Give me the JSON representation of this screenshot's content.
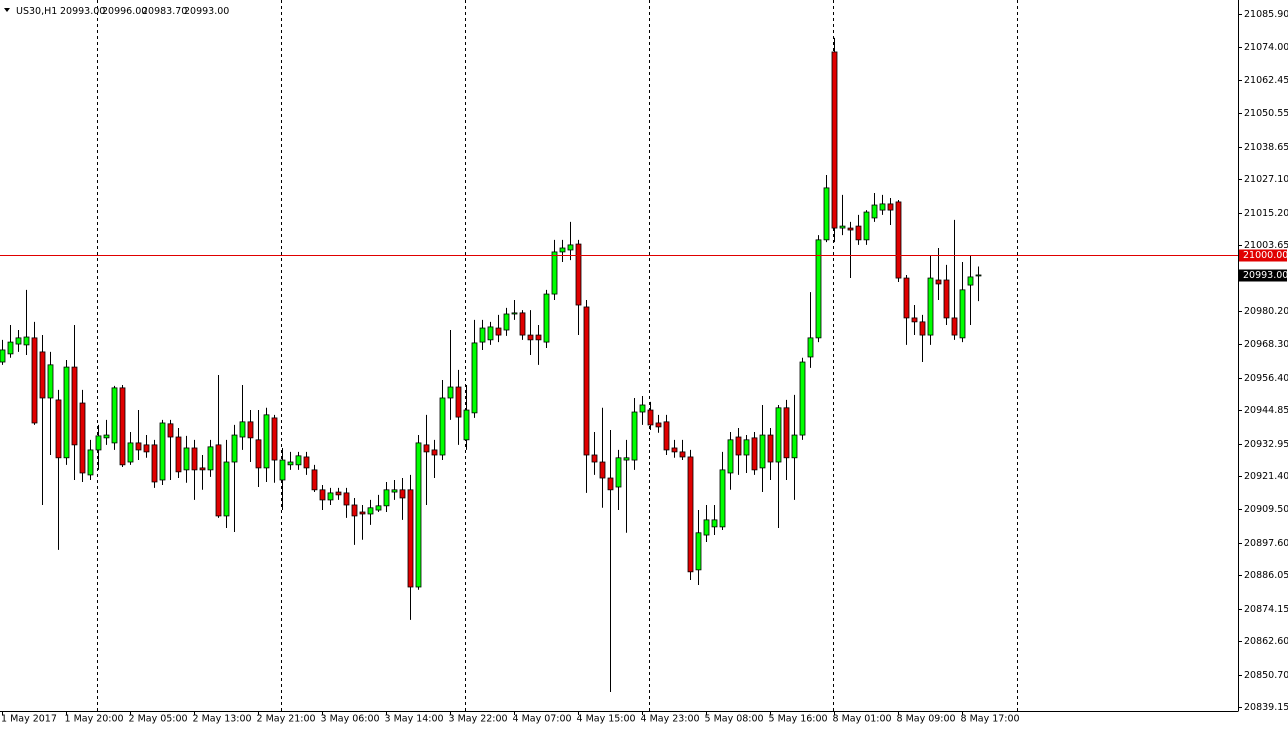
{
  "chart_data": {
    "type": "candlestick",
    "symbol": "US30,H1",
    "header_ohlc": [
      "20993.00",
      "20996.00",
      "20983.70",
      "20993.00"
    ],
    "up_color": "#00ff00",
    "down_color": "#e00000",
    "categories": [
      "1 May 2017",
      null,
      null,
      null,
      null,
      null,
      null,
      null,
      "1 May 20:00",
      null,
      null,
      null,
      null,
      null,
      null,
      null,
      "2 May 05:00",
      null,
      null,
      null,
      null,
      null,
      null,
      null,
      "2 May 13:00",
      null,
      null,
      null,
      null,
      null,
      null,
      null,
      "2 May 21:00",
      null,
      null,
      null,
      null,
      null,
      null,
      null,
      "3 May 06:00",
      null,
      null,
      null,
      null,
      null,
      null,
      null,
      "3 May 14:00",
      null,
      null,
      null,
      null,
      null,
      null,
      null,
      "3 May 22:00",
      null,
      null,
      null,
      null,
      null,
      null,
      null,
      "4 May 07:00",
      null,
      null,
      null,
      null,
      null,
      null,
      null,
      "4 May 15:00",
      null,
      null,
      null,
      null,
      null,
      null,
      null,
      "4 May 23:00",
      null,
      null,
      null,
      null,
      null,
      null,
      null,
      "5 May 08:00",
      null,
      null,
      null,
      null,
      null,
      null,
      null,
      "5 May 16:00",
      null,
      null,
      null,
      null,
      null,
      null,
      null,
      "8 May 01:00",
      null,
      null,
      null,
      null,
      null,
      null,
      null,
      "8 May 09:00",
      null,
      null,
      null,
      null,
      null,
      null,
      null,
      "8 May 17:00",
      null,
      null
    ],
    "open": [
      20962.0,
      20964.9,
      20968.4,
      20968.1,
      20970.6,
      20965.6,
      20949.2,
      20948.5,
      20927.9,
      20960.2,
      20947.4,
      20921.8,
      20930.7,
      20935.0,
      20933.2,
      20952.8,
      20926.4,
      20933.2,
      20932.5,
      20932.5,
      20920.0,
      20940.0,
      20935.3,
      20923.6,
      20931.4,
      20924.3,
      20923.6,
      20932.5,
      20907.2,
      20926.4,
      20935.3,
      20940.7,
      20934.3,
      20924.3,
      20942.1,
      20920.0,
      20925.4,
      20925.4,
      20928.2,
      20923.6,
      20916.5,
      20912.9,
      20915.7,
      20915.4,
      20911.1,
      20908.6,
      20907.9,
      20909.3,
      20910.8,
      20915.7,
      20916.5,
      20916.5,
      20881.9,
      20932.5,
      20930.7,
      20928.9,
      20949.2,
      20953.1,
      20934.3,
      20943.9,
      20969.1,
      20969.9,
      20974.1,
      20973.4,
      20979.1,
      20979.5,
      20971.6,
      20971.6,
      20969.1,
      20986.2,
      21001.2,
      21001.9,
      21004.0,
      20981.6,
      20928.9,
      20926.4,
      20920.7,
      20917.5,
      20927.1,
      20927.1,
      20944.2,
      20944.9,
      20940.3,
      20940.7,
      20931.4,
      20930.0,
      20928.2,
      20888.0,
      20900.4,
      20903.3,
      20903.3,
      20922.5,
      20935.3,
      20928.9,
      20935.0,
      20924.3,
      20936.0,
      20926.4,
      20945.7,
      20927.9,
      20936.0,
      20963.8,
      20970.6,
      21005.5,
      21072.4,
      21009.7,
      21009.7,
      21010.4,
      21005.5,
      21013.3,
      21016.1,
      21018.3,
      21019.0,
      20991.9,
      20977.7,
      20976.3,
      20971.6,
      20991.2,
      20991.2,
      20977.7,
      20970.6,
      20989.4,
      20993
    ],
    "high": [
      20969.9,
      20975.2,
      20973.4,
      20987.7,
      20976.3,
      20971.6,
      20965.6,
      20952.1,
      20962.7,
      20975.2,
      20952.1,
      20934.3,
      20939.6,
      20941.4,
      20953.5,
      20953.8,
      20937.1,
      20944.9,
      20936.0,
      20934.3,
      20941.4,
      20941.4,
      20938.5,
      20935.7,
      20934.3,
      20928.9,
      20934.3,
      20957.4,
      20934.3,
      20939.6,
      20953.8,
      20944.9,
      20944.9,
      20945.7,
      20943.2,
      20931.4,
      20930.0,
      20930.0,
      20930.0,
      20925.4,
      20918.2,
      20917.2,
      20917.2,
      20917.2,
      20913.6,
      20911.1,
      20912.9,
      20914.7,
      20919.3,
      20920.0,
      20920.7,
      20921.8,
      20936.0,
      20943.2,
      20934.3,
      20955.6,
      20973.4,
      20959.2,
      20953.8,
      20977.0,
      20977.0,
      20976.3,
      20978.8,
      20981.3,
      20984.1,
      20980.5,
      20980.5,
      20975.2,
      20987.7,
      21005.5,
      21005.5,
      21011.9,
      21005.5,
      20984.1,
      20937.1,
      20945.7,
      20937.8,
      20930.7,
      20934.3,
      20949.2,
      20949.9,
      20947.8,
      20943.2,
      20943.2,
      20934.3,
      20934.3,
      20930.7,
      20909.3,
      20911.1,
      20911.1,
      20930.0,
      20937.1,
      20938.5,
      20936.0,
      20937.1,
      20946.7,
      20938.5,
      20946.7,
      20948.5,
      20950.3,
      20963.5,
      20986.9,
      21007.2,
      21028.6,
      21077.4,
      21021.5,
      21011.9,
      21014.4,
      21016.1,
      21022.2,
      21021.5,
      21020.4,
      21019.7,
      20993.0,
      20982.3,
      20978.8,
      21000.1,
      21002.6,
      20996.6,
      21012.6,
      20997.6,
      21000.1,
      20996
    ],
    "low": [
      20961.0,
      20963.5,
      20965.6,
      20964.5,
      20939.6,
      20911.1,
      20928.9,
      20895.1,
      20925.4,
      20920.0,
      20919.3,
      20920.0,
      20923.6,
      20932.5,
      20930.7,
      20924.6,
      20925.4,
      20927.1,
      20927.9,
      20917.2,
      20918.2,
      20920.0,
      20920.7,
      20919.0,
      20912.9,
      20916.5,
      20921.1,
      20906.5,
      20902.9,
      20901.5,
      20930.7,
      20926.4,
      20917.5,
      20919.3,
      20919.0,
      20909.3,
      20923.6,
      20923.6,
      20921.8,
      20915.7,
      20909.3,
      20911.1,
      20912.9,
      20906.5,
      20896.9,
      20898.7,
      20904.0,
      20908.6,
      20908.6,
      20912.9,
      20905.8,
      20870.2,
      20880.9,
      20911.1,
      20920.7,
      20927.1,
      20941.4,
      20932.5,
      20930.7,
      20942.1,
      20966.3,
      20968.1,
      20969.1,
      20971.3,
      20977.0,
      20969.9,
      20964.5,
      20961.0,
      20967.0,
      20984.1,
      20997.6,
      20998.3,
      20971.6,
      20915.4,
      20921.8,
      20910.1,
      20844.5,
      20909.3,
      20901.2,
      20923.6,
      20939.6,
      20937.8,
      20936.8,
      20928.9,
      20927.9,
      20927.1,
      20884.4,
      20882.6,
      20897.9,
      20900.4,
      20902.2,
      20916.5,
      20921.8,
      20922.5,
      20921.8,
      20915.7,
      20920.0,
      20902.9,
      20920.0,
      20912.9,
      20934.3,
      20959.9,
      20969.1,
      21004.7,
      21004.7,
      21007.2,
      20991.9,
      21003.7,
      21003.7,
      21011.9,
      21014.4,
      21010.8,
      20990.5,
      20968.1,
      20971.6,
      20962.0,
      20968.1,
      20984.1,
      20975.2,
      20969.9,
      20969.1,
      20975.2,
      20983.7
    ],
    "close": [
      20966.3,
      20969.1,
      20970.6,
      20970.9,
      20940.3,
      20949.2,
      20961.0,
      20927.9,
      20960.2,
      20932.5,
      20922.5,
      20930.7,
      20935.7,
      20936.0,
      20952.8,
      20925.4,
      20933.2,
      20930.7,
      20930.0,
      20919.3,
      20940.3,
      20935.3,
      20922.9,
      20931.4,
      20923.6,
      20923.6,
      20931.8,
      20907.2,
      20926.4,
      20936.0,
      20940.7,
      20935.0,
      20924.3,
      20943.2,
      20927.1,
      20927.1,
      20926.4,
      20928.6,
      20924.3,
      20916.5,
      20912.9,
      20915.4,
      20914.7,
      20911.1,
      20907.2,
      20907.9,
      20910.1,
      20910.8,
      20916.5,
      20916.5,
      20913.6,
      20881.9,
      20933.2,
      20930.0,
      20928.9,
      20949.2,
      20953.1,
      20942.4,
      20944.9,
      20968.8,
      20974.1,
      20974.5,
      20971.6,
      20979.1,
      20979.5,
      20971.6,
      20969.9,
      20969.9,
      20986.2,
      21001.2,
      21002.6,
      21003.7,
      20982.3,
      20928.9,
      20926.4,
      20920.7,
      20916.5,
      20927.9,
      20927.9,
      20944.2,
      20946.7,
      20939.6,
      20938.9,
      20930.7,
      20930.0,
      20928.2,
      20887.3,
      20901.2,
      20905.8,
      20905.8,
      20923.6,
      20934.3,
      20928.9,
      20934.3,
      20923.6,
      20936.0,
      20926.4,
      20945.7,
      20927.9,
      20936.0,
      20962.0,
      20970.6,
      21005.5,
      21024.0,
      21009.7,
      21010.4,
      21009.0,
      21005.5,
      21015.4,
      21017.9,
      21018.3,
      21016.1,
      20991.9,
      20977.7,
      20976.3,
      20971.6,
      20991.9,
      20989.8,
      20977.7,
      20971.6,
      20987.7,
      20992.3,
      20993
    ],
    "ylim": [
      20838.1,
      21090.9
    ],
    "yticks": [
      {
        "value": 21085.9,
        "label": "21085.90"
      },
      {
        "value": 21074,
        "label": "21074.00"
      },
      {
        "value": 21062.45,
        "label": "21062.45"
      },
      {
        "value": 21050.55,
        "label": "21050.55"
      },
      {
        "value": 21038.65,
        "label": "21038.65"
      },
      {
        "value": 21027.1,
        "label": "21027.10"
      },
      {
        "value": 21015.2,
        "label": "21015.20"
      },
      {
        "value": 21003.65,
        "label": "21003.65"
      },
      {
        "value": 20980.2,
        "label": "20980.20"
      },
      {
        "value": 20968.3,
        "label": "20968.30"
      },
      {
        "value": 20956.4,
        "label": "20956.40"
      },
      {
        "value": 20944.85,
        "label": "20944.85"
      },
      {
        "value": 20932.95,
        "label": "20932.95"
      },
      {
        "value": 20921.4,
        "label": "20921.40"
      },
      {
        "value": 20909.5,
        "label": "20909.50"
      },
      {
        "value": 20897.6,
        "label": "20897.60"
      },
      {
        "value": 20886.05,
        "label": "20886.05"
      },
      {
        "value": 20874.15,
        "label": "20874.15"
      },
      {
        "value": 20862.6,
        "label": "20862.60"
      },
      {
        "value": 20850.7,
        "label": "20850.70"
      },
      {
        "value": 20839.15,
        "label": "20839.15"
      }
    ],
    "price_line": {
      "value": 21000,
      "label": "21000.00",
      "color": "#e00000"
    },
    "last_price": {
      "value": 20993,
      "label": "20993.00"
    }
  }
}
